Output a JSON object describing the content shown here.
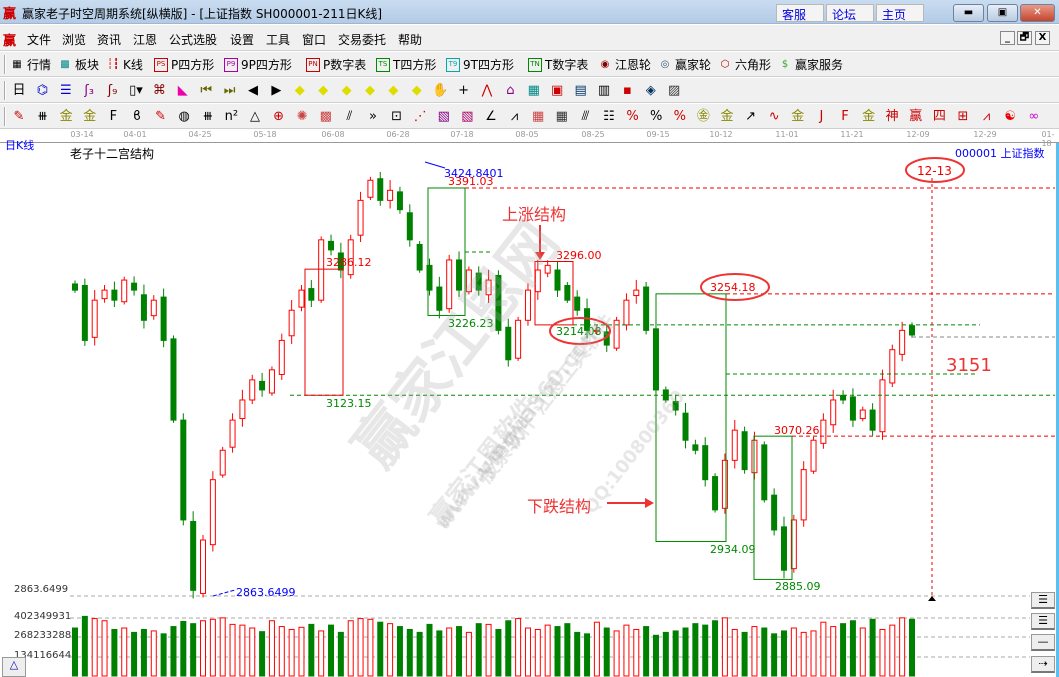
{
  "window": {
    "logo": "赢",
    "title": "赢家老子时空周期系统[纵横版] - [上证指数  SH000001-211日K线]",
    "links": [
      "客服",
      "论坛",
      "主页"
    ],
    "controls": [
      "minimize",
      "restore",
      "close"
    ]
  },
  "menu": {
    "logo": "赢",
    "items": [
      "文件",
      "浏览",
      "资讯",
      "江恩",
      "公式选股",
      "设置",
      "工具",
      "窗口",
      "交易委托",
      "帮助"
    ],
    "mdi": [
      "_",
      "🗗",
      "X"
    ]
  },
  "toolbar1": [
    {
      "icon": "table-icon",
      "glyph": "▦",
      "label": "行情",
      "color": "#000"
    },
    {
      "icon": "blocks-icon",
      "glyph": "▩",
      "label": "板块",
      "color": "#088"
    },
    {
      "icon": "candles-icon",
      "glyph": "┆┇",
      "label": "K线",
      "color": "#c00"
    },
    {
      "icon": "ps-icon",
      "glyph": "PS",
      "label": "P四方形",
      "color": "#c00"
    },
    {
      "icon": "p9-icon",
      "glyph": "P9",
      "label": "9P四方形",
      "color": "#a0a"
    },
    {
      "icon": "pn-icon",
      "glyph": "PN",
      "label": "P数字表",
      "color": "#c00"
    },
    {
      "icon": "ts-icon",
      "glyph": "TS",
      "label": "T四方形",
      "color": "#080"
    },
    {
      "icon": "t9-icon",
      "glyph": "T9",
      "label": "9T四方形",
      "color": "#0aa"
    },
    {
      "icon": "tn-icon",
      "glyph": "TN",
      "label": "T数字表",
      "color": "#080"
    },
    {
      "icon": "gann-wheel-icon",
      "glyph": "◉",
      "label": "江恩轮",
      "color": "#800"
    },
    {
      "icon": "big-wheel-icon",
      "glyph": "◎",
      "label": "赢家轮",
      "color": "#357"
    },
    {
      "icon": "hexagon-icon",
      "glyph": "⬡",
      "label": "六角形",
      "color": "#a00"
    },
    {
      "icon": "dollar-icon",
      "glyph": "$",
      "label": "赢家服务",
      "color": "#3a3"
    }
  ],
  "toolbar2": [
    {
      "icon": "period-day-icon",
      "glyph": "日▾",
      "color": "#000"
    },
    {
      "icon": "map-icon",
      "glyph": "⌬",
      "color": "#00c"
    },
    {
      "icon": "note-icon",
      "glyph": "☰",
      "color": "#00c"
    },
    {
      "icon": "wave3-icon",
      "glyph": "ʃ₃",
      "color": "#808"
    },
    {
      "icon": "wave9-icon",
      "glyph": "ʃ₉",
      "color": "#800"
    },
    {
      "icon": "candle-type-icon",
      "glyph": "▯▾",
      "color": "#000"
    },
    {
      "icon": "pattern-icon",
      "glyph": "⌘",
      "color": "#800"
    },
    {
      "icon": "distribution-icon",
      "glyph": "◣",
      "color": "#e0a"
    },
    {
      "icon": "first-icon",
      "glyph": "⏮",
      "color": "#660"
    },
    {
      "icon": "last-icon",
      "glyph": "⏭",
      "color": "#660"
    },
    {
      "icon": "left-icon",
      "glyph": "◀",
      "color": "#000"
    },
    {
      "icon": "right-icon",
      "glyph": "▶",
      "color": "#000"
    },
    {
      "icon": "diamond-left-icon",
      "glyph": "◆",
      "color": "#dd0"
    },
    {
      "icon": "diamond-right-icon",
      "glyph": "◆",
      "color": "#dd0"
    },
    {
      "icon": "diamond-h-icon",
      "glyph": "◆",
      "color": "#dd0"
    },
    {
      "icon": "diamond-shrink-icon",
      "glyph": "◆",
      "color": "#dd0"
    },
    {
      "icon": "diamond-v-icon",
      "glyph": "◆",
      "color": "#dd0"
    },
    {
      "icon": "diamond-all-icon",
      "glyph": "◆",
      "color": "#dd0"
    },
    {
      "icon": "hand-icon",
      "glyph": "✋",
      "color": "#000"
    },
    {
      "icon": "crosshair-icon",
      "glyph": "+",
      "color": "#000"
    },
    {
      "icon": "line-icon",
      "glyph": "⋀",
      "color": "#c00"
    },
    {
      "icon": "shape-icon",
      "glyph": "⌂",
      "color": "#808"
    },
    {
      "icon": "chart-icon",
      "glyph": "▦",
      "color": "#088"
    },
    {
      "icon": "calendar-icon",
      "glyph": "▣",
      "color": "#c00"
    },
    {
      "icon": "calculator-icon",
      "glyph": "▤",
      "color": "#036"
    },
    {
      "icon": "notes-icon",
      "glyph": "▥",
      "color": "#000"
    },
    {
      "icon": "save-icon",
      "glyph": "▪",
      "color": "#c00"
    },
    {
      "icon": "network-icon",
      "glyph": "◈",
      "color": "#036"
    },
    {
      "icon": "trade-icon",
      "glyph": "▨",
      "color": "#333"
    }
  ],
  "toolbar3": [
    {
      "icon": "pen-icon",
      "glyph": "✎",
      "color": "#c00"
    },
    {
      "icon": "lines-icon",
      "glyph": "⧻",
      "color": "#000"
    },
    {
      "icon": "gold1-icon",
      "glyph": "金",
      "color": "#880"
    },
    {
      "icon": "gold2-icon",
      "glyph": "金",
      "color": "#880"
    },
    {
      "icon": "fib-icon",
      "glyph": "F",
      "color": "#000"
    },
    {
      "icon": "spiral-icon",
      "glyph": "ϐ",
      "color": "#000"
    },
    {
      "icon": "pen2-icon",
      "glyph": "✎",
      "color": "#c00"
    },
    {
      "icon": "cycle-icon",
      "glyph": "◍",
      "color": "#000"
    },
    {
      "icon": "bars-icon",
      "glyph": "⧻",
      "color": "#000"
    },
    {
      "icon": "square-n-icon",
      "glyph": "n²",
      "color": "#000"
    },
    {
      "icon": "triangle-icon",
      "glyph": "△",
      "color": "#000"
    },
    {
      "icon": "target-icon",
      "glyph": "⊕",
      "color": "#c00"
    },
    {
      "icon": "web-icon",
      "glyph": "✺",
      "color": "#c44"
    },
    {
      "icon": "grid-icon",
      "glyph": "▩",
      "color": "#c44"
    },
    {
      "icon": "angle-icon",
      "glyph": "⫽",
      "color": "#000"
    },
    {
      "icon": "more-icon",
      "glyph": "»",
      "color": "#000"
    },
    {
      "icon": "box-icon",
      "glyph": "⊡",
      "color": "#000"
    },
    {
      "icon": "fan-icon",
      "glyph": "⋰",
      "color": "#c00"
    },
    {
      "icon": "fan-box-icon",
      "glyph": "▧",
      "color": "#808"
    },
    {
      "icon": "fan-box2-icon",
      "glyph": "▧",
      "color": "#a06"
    },
    {
      "icon": "fan-lines-icon",
      "glyph": "∠",
      "color": "#000"
    },
    {
      "icon": "zigzag-icon",
      "glyph": "⩘",
      "color": "#000"
    },
    {
      "icon": "grid2-icon",
      "glyph": "▦",
      "color": "#c44"
    },
    {
      "icon": "grid3-icon",
      "glyph": "▦",
      "color": "#333"
    },
    {
      "icon": "parallel-icon",
      "glyph": "⫻",
      "color": "#000"
    },
    {
      "icon": "table2-icon",
      "glyph": "☷",
      "color": "#000"
    },
    {
      "icon": "percent-line-icon",
      "glyph": "%",
      "color": "#c00"
    },
    {
      "icon": "percent-icon",
      "glyph": "%",
      "color": "#000"
    },
    {
      "icon": "percent-lines-icon",
      "glyph": "%",
      "color": "#c00"
    },
    {
      "icon": "gold-circle-icon",
      "glyph": "㊎",
      "color": "#880"
    },
    {
      "icon": "gold-lines-icon",
      "glyph": "金",
      "color": "#880"
    },
    {
      "icon": "arrow-tool-icon",
      "glyph": "↗",
      "color": "#000"
    },
    {
      "icon": "sine-icon",
      "glyph": "∿",
      "color": "#c00"
    },
    {
      "icon": "gold-bar-icon",
      "glyph": "金",
      "color": "#880"
    },
    {
      "icon": "j-angle-icon",
      "glyph": "J",
      "color": "#c00"
    },
    {
      "icon": "f-angle-icon",
      "glyph": "F",
      "color": "#c00"
    },
    {
      "icon": "gold-angle-icon",
      "glyph": "金",
      "color": "#880"
    },
    {
      "icon": "god-angle-icon",
      "glyph": "神",
      "color": "#c00"
    },
    {
      "icon": "win-angle-icon",
      "glyph": "赢",
      "color": "#c00"
    },
    {
      "icon": "four-angle-icon",
      "glyph": "四",
      "color": "#c00"
    },
    {
      "icon": "cross-box-icon",
      "glyph": "⊞",
      "color": "#c00"
    },
    {
      "icon": "trend-icon",
      "glyph": "⩘",
      "color": "#c00"
    },
    {
      "icon": "yinyang-icon",
      "glyph": "☯",
      "color": "#e00"
    },
    {
      "icon": "infinity-icon",
      "glyph": "∞",
      "color": "#c0c"
    }
  ],
  "chart": {
    "period_label": "日K线",
    "study_title": "老子十二宫结构",
    "symbol": "000001  上证指数",
    "volume_toggle": "△",
    "side_buttons": [
      "☰",
      "☰",
      "—",
      "⇢"
    ]
  },
  "chart_data": {
    "type": "candlestick",
    "dates": [
      "03-14",
      "04-01",
      "04-25",
      "05-18",
      "06-08",
      "06-28",
      "07-18",
      "08-05",
      "08-25",
      "09-15",
      "10-12",
      "11-01",
      "11-21",
      "12-09",
      "12-29",
      "01-18"
    ],
    "closes": [
      3259,
      3194,
      3246,
      3259,
      3246,
      3272,
      3259,
      3220,
      3246,
      3194,
      3091,
      2962,
      2871,
      2936,
      3014,
      3052,
      3091,
      3117,
      3143,
      3130,
      3156,
      3194,
      3233,
      3259,
      3246,
      3324,
      3311,
      3285,
      3324,
      3375,
      3401,
      3375,
      3388,
      3363,
      3324,
      3285,
      3259,
      3233,
      3298,
      3259,
      3285,
      3259,
      3272,
      3207,
      3169,
      3220,
      3259,
      3285,
      3291,
      3259,
      3246,
      3233,
      3207,
      3207,
      3188,
      3220,
      3246,
      3259,
      3207,
      3130,
      3117,
      3104,
      3065,
      3052,
      3014,
      2975,
      3039,
      3078,
      3027,
      3065,
      2988,
      2949,
      2897,
      2962,
      3027,
      3065,
      3091,
      3117,
      3117,
      3091,
      3104,
      3078,
      3143,
      3182,
      3207,
      3201
    ],
    "volumes": [
      330,
      410,
      395,
      380,
      320,
      330,
      300,
      320,
      310,
      290,
      340,
      375,
      360,
      380,
      390,
      400,
      355,
      350,
      330,
      305,
      380,
      340,
      320,
      335,
      355,
      310,
      350,
      300,
      380,
      395,
      390,
      370,
      360,
      340,
      320,
      300,
      355,
      310,
      330,
      340,
      300,
      360,
      355,
      320,
      380,
      395,
      330,
      320,
      350,
      340,
      360,
      300,
      290,
      370,
      330,
      310,
      350,
      320,
      340,
      280,
      300,
      310,
      330,
      360,
      350,
      380,
      400,
      320,
      300,
      340,
      330,
      290,
      310,
      330,
      300,
      310,
      370,
      340,
      360,
      380,
      330,
      390,
      320,
      350,
      400,
      390
    ],
    "price_axis_label": "2863.6499",
    "volume_axis_labels": [
      "402349931",
      "268233288",
      "134116644"
    ],
    "annotations": {
      "high": "3424.8401",
      "low": "2863.6499",
      "levels": [
        "3391.03",
        "3286.12",
        "3123.15",
        "3226.23",
        "3296.00",
        "3214.08",
        "3254.18",
        "2934.09",
        "3070.26",
        "2885.09"
      ],
      "rise_label": "上涨结构",
      "fall_label": "下跌结构",
      "target": "3151",
      "date_mark": "12-13"
    },
    "colors": {
      "up": "#ff0000",
      "down": "#008000",
      "high_low": "#0000ff"
    }
  },
  "watermark": [
    "赢家江恩网",
    "赢家江恩软件",
    "股票软件  江恩工具软件",
    "www.yingjia360.com",
    "QQ:100800360"
  ]
}
